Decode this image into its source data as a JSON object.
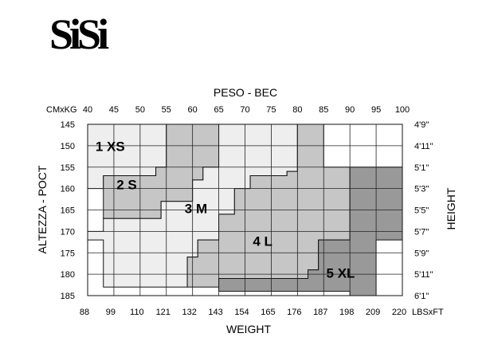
{
  "brand": {
    "logo_text": "SiSi"
  },
  "chart_data": {
    "type": "heatmap",
    "title": "PESO - BEC",
    "xlabel": "WEIGHT",
    "ylabel": "ALTEZZA - POCT",
    "ylabel_right": "HEIGHT",
    "x_unit_top": "CMxKG",
    "x_unit_bottom": "LBSxFT",
    "x_kg": [
      40,
      45,
      50,
      55,
      60,
      65,
      70,
      75,
      80,
      85,
      90,
      95,
      100
    ],
    "x_lbs": [
      "88",
      "99",
      "110",
      "121",
      "132",
      "143",
      "154",
      "165",
      "176",
      "187",
      "198",
      "209",
      "220"
    ],
    "y_cm": [
      145,
      150,
      155,
      160,
      165,
      170,
      175,
      180,
      185
    ],
    "y_ft": [
      "4'9\"",
      "4'11\"",
      "5'1\"",
      "5'3\"",
      "5'5\"",
      "5'7\"",
      "5'9\"",
      "5'11\"",
      "6'1\""
    ],
    "xlim": [
      40,
      100
    ],
    "ylim": [
      145,
      185
    ],
    "sizes": [
      {
        "label": "1 XS",
        "color": "#eeeeee",
        "label_at": [
          41.5,
          151.2
        ],
        "polygon": [
          [
            40,
            145
          ],
          [
            55,
            145
          ],
          [
            55,
            155
          ],
          [
            53,
            155
          ],
          [
            53,
            157
          ],
          [
            43,
            157
          ],
          [
            43,
            160
          ],
          [
            40,
            160
          ]
        ]
      },
      {
        "label": "2 S",
        "color": "#c6c6c6",
        "label_at": [
          45.5,
          160.2
        ],
        "polygon": [
          [
            55,
            145
          ],
          [
            65,
            145
          ],
          [
            65,
            155
          ],
          [
            62,
            155
          ],
          [
            62,
            158
          ],
          [
            60,
            158
          ],
          [
            60,
            163
          ],
          [
            54,
            163
          ],
          [
            54,
            167
          ],
          [
            43,
            167
          ],
          [
            43,
            157
          ],
          [
            53,
            157
          ],
          [
            53,
            155
          ],
          [
            55,
            155
          ]
        ]
      },
      {
        "label": "3 M",
        "color": "#eeeeee",
        "label_at": [
          58.5,
          165.7
        ],
        "polygon": [
          [
            65,
            145
          ],
          [
            80,
            145
          ],
          [
            80,
            156
          ],
          [
            78,
            156
          ],
          [
            78,
            157
          ],
          [
            71,
            157
          ],
          [
            71,
            160
          ],
          [
            68,
            160
          ],
          [
            68,
            166
          ],
          [
            65,
            166
          ],
          [
            65,
            172
          ],
          [
            61,
            172
          ],
          [
            61,
            176
          ],
          [
            59,
            176
          ],
          [
            59,
            183
          ],
          [
            43,
            183
          ],
          [
            43,
            172
          ],
          [
            40,
            172
          ],
          [
            40,
            170
          ],
          [
            43,
            170
          ],
          [
            43,
            167
          ],
          [
            54,
            167
          ],
          [
            54,
            163
          ],
          [
            60,
            163
          ],
          [
            60,
            158
          ],
          [
            62,
            158
          ],
          [
            62,
            155
          ],
          [
            65,
            155
          ]
        ]
      },
      {
        "label": "4 L",
        "color": "#c6c6c6",
        "label_at": [
          71.5,
          173.4
        ],
        "polygon": [
          [
            80,
            145
          ],
          [
            85,
            145
          ],
          [
            85,
            155
          ],
          [
            90,
            155
          ],
          [
            90,
            172
          ],
          [
            84,
            172
          ],
          [
            84,
            179
          ],
          [
            82,
            179
          ],
          [
            82,
            181
          ],
          [
            65,
            181
          ],
          [
            65,
            183
          ],
          [
            59,
            183
          ],
          [
            59,
            176
          ],
          [
            61,
            176
          ],
          [
            61,
            172
          ],
          [
            65,
            172
          ],
          [
            65,
            166
          ],
          [
            68,
            166
          ],
          [
            68,
            160
          ],
          [
            71,
            160
          ],
          [
            71,
            157
          ],
          [
            78,
            157
          ],
          [
            78,
            156
          ],
          [
            80,
            156
          ]
        ]
      },
      {
        "label": "5 XL",
        "color": "#999999",
        "label_at": [
          85.5,
          180.8
        ],
        "polygon": [
          [
            90,
            155
          ],
          [
            100,
            155
          ],
          [
            100,
            172
          ],
          [
            95,
            172
          ],
          [
            95,
            185
          ],
          [
            90,
            185
          ],
          [
            90,
            184
          ],
          [
            65,
            184
          ],
          [
            65,
            181
          ],
          [
            82,
            181
          ],
          [
            82,
            179
          ],
          [
            84,
            179
          ],
          [
            84,
            172
          ],
          [
            90,
            172
          ]
        ]
      }
    ]
  }
}
